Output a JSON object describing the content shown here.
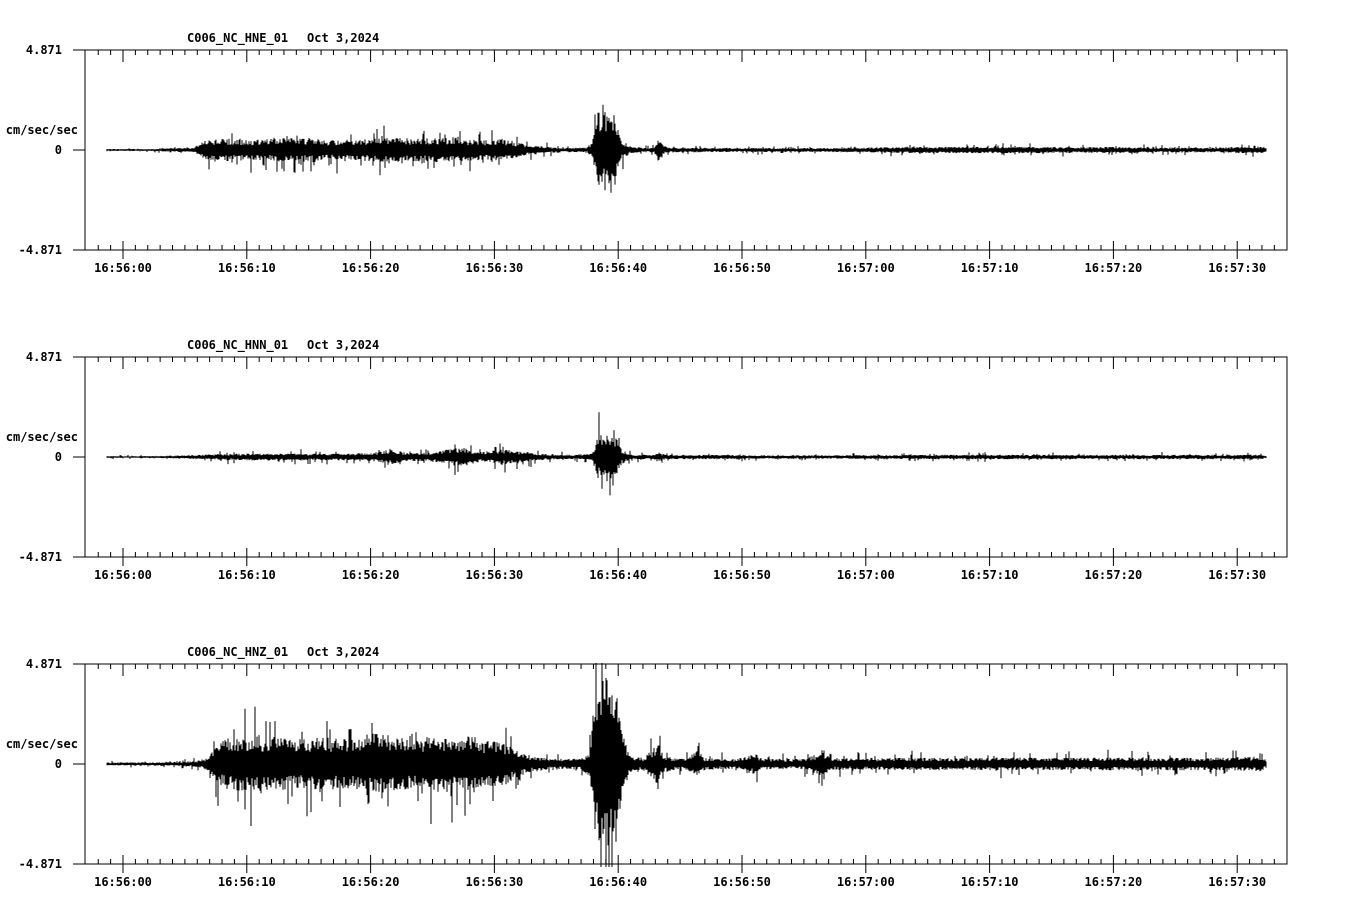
{
  "page": {
    "background": "#ffffff"
  },
  "colors": {
    "trace": "#000000",
    "axis": "#000000",
    "text": "#000000",
    "background": "#ffffff"
  },
  "chart_data": [
    {
      "type": "line",
      "subtype": "seismogram",
      "title": "C006_NC_HNE_01",
      "date_label": "Oct 3,2024",
      "station": "C006",
      "network": "NC",
      "channel": "HNE",
      "location": "01",
      "ylabel": "cm/sec/sec",
      "y_tick_labels": [
        "4.871",
        "0",
        "-4.871"
      ],
      "y_ticks": [
        4.871,
        0,
        -4.871
      ],
      "ylim": [
        -4.871,
        4.871
      ],
      "x_tick_labels": [
        "16:56:00",
        "16:56:10",
        "16:56:20",
        "16:56:30",
        "16:56:40",
        "16:56:50",
        "16:57:00",
        "16:57:10",
        "16:57:20",
        "16:57:30"
      ],
      "x_tick_seconds": [
        0,
        10,
        20,
        30,
        40,
        50,
        60,
        70,
        80,
        90
      ],
      "x_minor_tick_interval_seconds": 1,
      "xlim_seconds": [
        -3.1,
        94.0
      ],
      "data_span_seconds": [
        -1.3,
        92.3
      ],
      "grid": false,
      "legend": "none",
      "envelope_units": "cm/sec/sec",
      "envelope": [
        [
          -1.3,
          0.05
        ],
        [
          2,
          0.05
        ],
        [
          3.5,
          0.08
        ],
        [
          5,
          0.1
        ],
        [
          5.8,
          0.15
        ],
        [
          6.5,
          0.45
        ],
        [
          8,
          0.55
        ],
        [
          10,
          0.5
        ],
        [
          12,
          0.55
        ],
        [
          14,
          0.6
        ],
        [
          16,
          0.5
        ],
        [
          18,
          0.5
        ],
        [
          20,
          0.55
        ],
        [
          22,
          0.6
        ],
        [
          24,
          0.55
        ],
        [
          25.5,
          0.6
        ],
        [
          27,
          0.55
        ],
        [
          29,
          0.5
        ],
        [
          30.5,
          0.55
        ],
        [
          32,
          0.35
        ],
        [
          33,
          0.25
        ],
        [
          34,
          0.17
        ],
        [
          35,
          0.12
        ],
        [
          36.5,
          0.11
        ],
        [
          37.5,
          0.12
        ],
        [
          37.9,
          0.4
        ],
        [
          38.3,
          1.8
        ],
        [
          39,
          2.0
        ],
        [
          39.7,
          1.8
        ],
        [
          40.3,
          0.5
        ],
        [
          41,
          0.15
        ],
        [
          42,
          0.11
        ],
        [
          42.9,
          0.12
        ],
        [
          43.2,
          0.55
        ],
        [
          43.7,
          0.2
        ],
        [
          44.5,
          0.12
        ],
        [
          46,
          0.12
        ],
        [
          48,
          0.1
        ],
        [
          50,
          0.1
        ],
        [
          53,
          0.1
        ],
        [
          56,
          0.1
        ],
        [
          58,
          0.11
        ],
        [
          60,
          0.12
        ],
        [
          63,
          0.15
        ],
        [
          66,
          0.15
        ],
        [
          69,
          0.16
        ],
        [
          72,
          0.16
        ],
        [
          75,
          0.15
        ],
        [
          78,
          0.14
        ],
        [
          80,
          0.15
        ],
        [
          82,
          0.14
        ],
        [
          84,
          0.12
        ],
        [
          86,
          0.12
        ],
        [
          88,
          0.12
        ],
        [
          90,
          0.15
        ],
        [
          91,
          0.17
        ],
        [
          92,
          0.17
        ],
        [
          92.3,
          0.1
        ]
      ]
    },
    {
      "type": "line",
      "subtype": "seismogram",
      "title": "C006_NC_HNN_01",
      "date_label": "Oct 3,2024",
      "station": "C006",
      "network": "NC",
      "channel": "HNN",
      "location": "01",
      "ylabel": "cm/sec/sec",
      "y_tick_labels": [
        "4.871",
        "0",
        "-4.871"
      ],
      "y_ticks": [
        4.871,
        0,
        -4.871
      ],
      "ylim": [
        -4.871,
        4.871
      ],
      "x_tick_labels": [
        "16:56:00",
        "16:56:10",
        "16:56:20",
        "16:56:30",
        "16:56:40",
        "16:56:50",
        "16:57:00",
        "16:57:10",
        "16:57:20",
        "16:57:30"
      ],
      "x_tick_seconds": [
        0,
        10,
        20,
        30,
        40,
        50,
        60,
        70,
        80,
        90
      ],
      "x_minor_tick_interval_seconds": 1,
      "xlim_seconds": [
        -3.1,
        94.0
      ],
      "data_span_seconds": [
        -1.3,
        92.3
      ],
      "grid": false,
      "legend": "none",
      "envelope_units": "cm/sec/sec",
      "envelope": [
        [
          -1.3,
          0.045
        ],
        [
          2,
          0.05
        ],
        [
          3,
          0.055
        ],
        [
          5,
          0.09
        ],
        [
          7,
          0.12
        ],
        [
          9,
          0.16
        ],
        [
          12,
          0.17
        ],
        [
          15,
          0.16
        ],
        [
          18,
          0.17
        ],
        [
          20,
          0.2
        ],
        [
          21.8,
          0.35
        ],
        [
          22.8,
          0.22
        ],
        [
          24,
          0.2
        ],
        [
          25,
          0.22
        ],
        [
          26.5,
          0.4
        ],
        [
          27.5,
          0.5
        ],
        [
          28.5,
          0.27
        ],
        [
          29.5,
          0.25
        ],
        [
          30.5,
          0.4
        ],
        [
          31.5,
          0.3
        ],
        [
          32.5,
          0.25
        ],
        [
          33.5,
          0.17
        ],
        [
          35,
          0.12
        ],
        [
          36.5,
          0.11
        ],
        [
          37.9,
          0.2
        ],
        [
          38.3,
          1.1
        ],
        [
          39,
          1.25
        ],
        [
          39.7,
          1.1
        ],
        [
          40.3,
          0.35
        ],
        [
          41,
          0.12
        ],
        [
          42.5,
          0.11
        ],
        [
          43.2,
          0.22
        ],
        [
          44,
          0.11
        ],
        [
          46,
          0.1
        ],
        [
          48,
          0.11
        ],
        [
          51,
          0.08
        ],
        [
          54,
          0.09
        ],
        [
          57,
          0.08
        ],
        [
          60,
          0.09
        ],
        [
          63,
          0.1
        ],
        [
          66,
          0.11
        ],
        [
          70,
          0.11
        ],
        [
          74,
          0.11
        ],
        [
          78,
          0.1
        ],
        [
          82,
          0.11
        ],
        [
          85,
          0.1
        ],
        [
          88,
          0.11
        ],
        [
          90,
          0.11
        ],
        [
          91.5,
          0.12
        ],
        [
          92.3,
          0.07
        ]
      ]
    },
    {
      "type": "line",
      "subtype": "seismogram",
      "title": "C006_NC_HNZ_01",
      "date_label": "Oct 3,2024",
      "station": "C006",
      "network": "NC",
      "channel": "HNZ",
      "location": "01",
      "ylabel": "cm/sec/sec",
      "y_tick_labels": [
        "4.871",
        "0",
        "-4.871"
      ],
      "y_ticks": [
        4.871,
        0,
        -4.871
      ],
      "ylim": [
        -4.871,
        4.871
      ],
      "x_tick_labels": [
        "16:56:00",
        "16:56:10",
        "16:56:20",
        "16:56:30",
        "16:56:40",
        "16:56:50",
        "16:57:00",
        "16:57:10",
        "16:57:20",
        "16:57:30"
      ],
      "x_tick_seconds": [
        0,
        10,
        20,
        30,
        40,
        50,
        60,
        70,
        80,
        90
      ],
      "x_minor_tick_interval_seconds": 1,
      "xlim_seconds": [
        -3.1,
        94.0
      ],
      "data_span_seconds": [
        -1.3,
        92.3
      ],
      "grid": false,
      "legend": "none",
      "envelope_units": "cm/sec/sec",
      "envelope": [
        [
          -1.3,
          0.08
        ],
        [
          2,
          0.08
        ],
        [
          4,
          0.1
        ],
        [
          6,
          0.15
        ],
        [
          6.8,
          0.3
        ],
        [
          7.5,
          0.9
        ],
        [
          8.5,
          1.3
        ],
        [
          10,
          1.4
        ],
        [
          12,
          1.3
        ],
        [
          14,
          1.2
        ],
        [
          16,
          1.3
        ],
        [
          18,
          1.2
        ],
        [
          20,
          1.5
        ],
        [
          21,
          1.55
        ],
        [
          22,
          1.3
        ],
        [
          24,
          1.2
        ],
        [
          25,
          1.4
        ],
        [
          27,
          1.2
        ],
        [
          28,
          1.4
        ],
        [
          29,
          1.2
        ],
        [
          31,
          1.0
        ],
        [
          32,
          0.6
        ],
        [
          33,
          0.4
        ],
        [
          34,
          0.3
        ],
        [
          35,
          0.25
        ],
        [
          36,
          0.25
        ],
        [
          37,
          0.3
        ],
        [
          37.7,
          0.6
        ],
        [
          38.2,
          4.0
        ],
        [
          39,
          4.4
        ],
        [
          39.8,
          4.0
        ],
        [
          40.3,
          1.5
        ],
        [
          41,
          0.4
        ],
        [
          42,
          0.3
        ],
        [
          43.2,
          1.0
        ],
        [
          43.8,
          0.4
        ],
        [
          44.5,
          0.3
        ],
        [
          45.5,
          0.25
        ],
        [
          46.3,
          0.7
        ],
        [
          47,
          0.3
        ],
        [
          48,
          0.25
        ],
        [
          49.5,
          0.25
        ],
        [
          51,
          0.5
        ],
        [
          51.8,
          0.25
        ],
        [
          53,
          0.25
        ],
        [
          55,
          0.25
        ],
        [
          56.5,
          0.6
        ],
        [
          57.3,
          0.3
        ],
        [
          59,
          0.27
        ],
        [
          62,
          0.3
        ],
        [
          65,
          0.3
        ],
        [
          68,
          0.3
        ],
        [
          71,
          0.32
        ],
        [
          74,
          0.3
        ],
        [
          77,
          0.3
        ],
        [
          80,
          0.32
        ],
        [
          83,
          0.3
        ],
        [
          85,
          0.32
        ],
        [
          87,
          0.3
        ],
        [
          89,
          0.32
        ],
        [
          91,
          0.35
        ],
        [
          92,
          0.35
        ],
        [
          92.3,
          0.2
        ]
      ]
    }
  ]
}
